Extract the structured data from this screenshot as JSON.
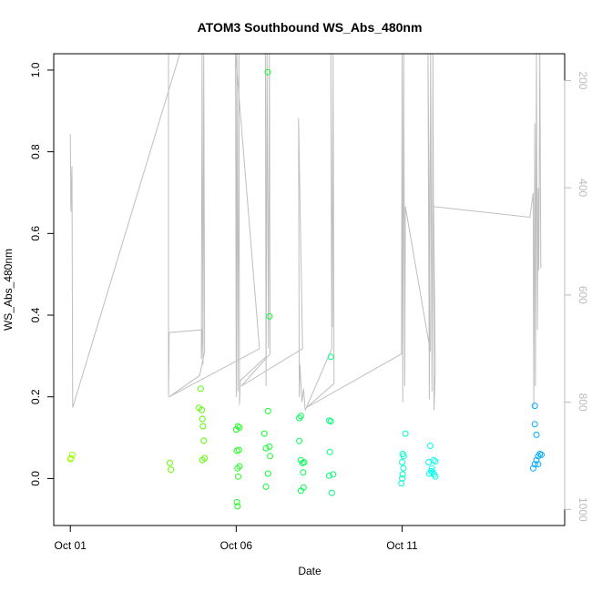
{
  "chart_data": {
    "type": "scatter",
    "title": "ATOM3 Southbound WS_Abs_480nm",
    "xlabel": "Date",
    "ylabel": "WS_Abs_480nm",
    "x_ticks": [
      {
        "day": 1,
        "label": "Oct 01"
      },
      {
        "day": 6,
        "label": "Oct 06"
      },
      {
        "day": 11,
        "label": "Oct 11"
      }
    ],
    "y_ticks": [
      "0.0",
      "0.2",
      "0.4",
      "0.6",
      "0.8",
      "1.0"
    ],
    "secondary_axis_ticks": [
      "200",
      "400",
      "600",
      "800",
      "1000"
    ],
    "xlim_days": [
      0.5,
      15.9
    ],
    "ylim": [
      -0.115,
      1.04
    ],
    "secondary_ylim": [
      1030,
      150
    ],
    "secondary_axis_color": "#bbbbbb",
    "line_color": "#bebebe",
    "grid": false,
    "legend": "none",
    "points": [
      {
        "day": 1.0,
        "y": 0.047,
        "color": "#99ff00"
      },
      {
        "day": 1.02,
        "y": 0.05,
        "color": "#99ff00"
      },
      {
        "day": 1.06,
        "y": 0.058,
        "color": "#99ff00"
      },
      {
        "day": 4.0,
        "y": 0.038,
        "color": "#66ff00"
      },
      {
        "day": 4.03,
        "y": 0.022,
        "color": "#66ff00"
      },
      {
        "day": 4.88,
        "y": 0.173,
        "color": "#55ff00"
      },
      {
        "day": 4.93,
        "y": 0.22,
        "color": "#55ff00"
      },
      {
        "day": 4.96,
        "y": 0.168,
        "color": "#55ff00"
      },
      {
        "day": 4.98,
        "y": 0.146,
        "color": "#55ff00"
      },
      {
        "day": 5.0,
        "y": 0.128,
        "color": "#55ff00"
      },
      {
        "day": 5.02,
        "y": 0.093,
        "color": "#55ff00"
      },
      {
        "day": 5.05,
        "y": 0.05,
        "color": "#55ff00"
      },
      {
        "day": 4.98,
        "y": 0.045,
        "color": "#55ff00"
      },
      {
        "day": 6.0,
        "y": 0.12,
        "color": "#22ff22"
      },
      {
        "day": 6.05,
        "y": 0.128,
        "color": "#22ff22"
      },
      {
        "day": 6.1,
        "y": 0.125,
        "color": "#22ff22"
      },
      {
        "day": 6.02,
        "y": 0.068,
        "color": "#22ff22"
      },
      {
        "day": 6.08,
        "y": 0.07,
        "color": "#22ff22"
      },
      {
        "day": 6.04,
        "y": 0.025,
        "color": "#22ff22"
      },
      {
        "day": 6.1,
        "y": 0.03,
        "color": "#22ff22"
      },
      {
        "day": 6.06,
        "y": 0.005,
        "color": "#22ff22"
      },
      {
        "day": 6.02,
        "y": -0.058,
        "color": "#22ff22"
      },
      {
        "day": 6.04,
        "y": -0.068,
        "color": "#22ff22"
      },
      {
        "day": 6.85,
        "y": 0.11,
        "color": "#11ff33"
      },
      {
        "day": 6.9,
        "y": 0.074,
        "color": "#11ff33"
      },
      {
        "day": 7.0,
        "y": 0.078,
        "color": "#11ff33"
      },
      {
        "day": 7.02,
        "y": 0.055,
        "color": "#11ff33"
      },
      {
        "day": 6.96,
        "y": 0.165,
        "color": "#11ff33"
      },
      {
        "day": 6.96,
        "y": 0.012,
        "color": "#11ff33"
      },
      {
        "day": 6.9,
        "y": -0.02,
        "color": "#11ff33"
      },
      {
        "day": 6.95,
        "y": 0.995,
        "color": "#11ff33"
      },
      {
        "day": 7.0,
        "y": 0.397,
        "color": "#11ff33"
      },
      {
        "day": 7.9,
        "y": 0.148,
        "color": "#00ff55"
      },
      {
        "day": 7.95,
        "y": 0.153,
        "color": "#00ff55"
      },
      {
        "day": 7.9,
        "y": 0.092,
        "color": "#00ff55"
      },
      {
        "day": 7.95,
        "y": 0.045,
        "color": "#00ff55"
      },
      {
        "day": 8.0,
        "y": 0.038,
        "color": "#00ff55"
      },
      {
        "day": 8.05,
        "y": 0.04,
        "color": "#00ff55"
      },
      {
        "day": 8.02,
        "y": 0.015,
        "color": "#00ff55"
      },
      {
        "day": 8.03,
        "y": -0.022,
        "color": "#00ff55"
      },
      {
        "day": 7.95,
        "y": -0.03,
        "color": "#00ff55"
      },
      {
        "day": 8.8,
        "y": 0.142,
        "color": "#00ff77"
      },
      {
        "day": 8.85,
        "y": 0.14,
        "color": "#00ff77"
      },
      {
        "day": 8.82,
        "y": 0.065,
        "color": "#00ff77"
      },
      {
        "day": 8.8,
        "y": 0.007,
        "color": "#00ff77"
      },
      {
        "day": 8.92,
        "y": 0.01,
        "color": "#00ff77"
      },
      {
        "day": 8.88,
        "y": -0.035,
        "color": "#00ff77"
      },
      {
        "day": 8.85,
        "y": 0.298,
        "color": "#00ff77"
      },
      {
        "day": 11.1,
        "y": 0.11,
        "color": "#00ffcc"
      },
      {
        "day": 11.02,
        "y": 0.06,
        "color": "#00ffcc"
      },
      {
        "day": 11.05,
        "y": 0.055,
        "color": "#00ffcc"
      },
      {
        "day": 11.0,
        "y": 0.04,
        "color": "#00ffcc"
      },
      {
        "day": 11.04,
        "y": 0.025,
        "color": "#00ffcc"
      },
      {
        "day": 11.02,
        "y": 0.01,
        "color": "#00ffcc"
      },
      {
        "day": 11.0,
        "y": 0.0,
        "color": "#00ffcc"
      },
      {
        "day": 10.98,
        "y": -0.012,
        "color": "#00ffcc"
      },
      {
        "day": 11.85,
        "y": 0.08,
        "color": "#00ffee"
      },
      {
        "day": 11.8,
        "y": 0.04,
        "color": "#00ffee"
      },
      {
        "day": 11.95,
        "y": 0.045,
        "color": "#00ffee"
      },
      {
        "day": 12.0,
        "y": 0.042,
        "color": "#00ffee"
      },
      {
        "day": 11.9,
        "y": 0.025,
        "color": "#00ffee"
      },
      {
        "day": 11.88,
        "y": 0.018,
        "color": "#00ffee"
      },
      {
        "day": 11.92,
        "y": 0.015,
        "color": "#00ffee"
      },
      {
        "day": 11.82,
        "y": 0.012,
        "color": "#00ffee"
      },
      {
        "day": 11.96,
        "y": 0.01,
        "color": "#00ffee"
      },
      {
        "day": 12.0,
        "y": 0.005,
        "color": "#00ffee"
      },
      {
        "day": 15.0,
        "y": 0.178,
        "color": "#00aaff"
      },
      {
        "day": 15.0,
        "y": 0.133,
        "color": "#00aaff"
      },
      {
        "day": 15.05,
        "y": 0.107,
        "color": "#00aaff"
      },
      {
        "day": 15.15,
        "y": 0.06,
        "color": "#00aaff"
      },
      {
        "day": 15.2,
        "y": 0.058,
        "color": "#00aaff"
      },
      {
        "day": 15.1,
        "y": 0.055,
        "color": "#00aaff"
      },
      {
        "day": 15.05,
        "y": 0.045,
        "color": "#00aaff"
      },
      {
        "day": 15.1,
        "y": 0.035,
        "color": "#00aaff"
      },
      {
        "day": 15.0,
        "y": 0.035,
        "color": "#00aaff"
      },
      {
        "day": 14.95,
        "y": 0.025,
        "color": "#00aaff"
      }
    ],
    "secondary_line": [
      {
        "day": 1.0,
        "v": 300
      },
      {
        "day": 1.02,
        "v": 445
      },
      {
        "day": 1.05,
        "v": 360
      },
      {
        "day": 1.07,
        "v": 810
      },
      {
        "day": 4.3,
        "v": 150
      },
      {
        "day": 4.3,
        "v": 150
      },
      {
        "day": 3.96,
        "v": 150
      },
      {
        "day": 3.96,
        "v": 790
      },
      {
        "day": 3.98,
        "v": 670
      },
      {
        "day": 4.98,
        "v": 665
      },
      {
        "day": 4.95,
        "v": 720
      },
      {
        "day": 4.97,
        "v": 150
      },
      {
        "day": 5.0,
        "v": 730
      },
      {
        "day": 5.02,
        "v": 150
      },
      {
        "day": 5.05,
        "v": 705
      },
      {
        "day": 4.9,
        "v": 750
      },
      {
        "day": 3.98,
        "v": 790
      },
      {
        "day": 6.7,
        "v": 700
      },
      {
        "day": 5.98,
        "v": 150
      },
      {
        "day": 6.0,
        "v": 790
      },
      {
        "day": 6.02,
        "v": 150
      },
      {
        "day": 6.05,
        "v": 780
      },
      {
        "day": 6.08,
        "v": 150
      },
      {
        "day": 6.1,
        "v": 805
      },
      {
        "day": 6.12,
        "v": 760
      },
      {
        "day": 6.9,
        "v": 715
      },
      {
        "day": 6.88,
        "v": 150
      },
      {
        "day": 6.9,
        "v": 770
      },
      {
        "day": 6.93,
        "v": 150
      },
      {
        "day": 6.97,
        "v": 700
      },
      {
        "day": 7.0,
        "v": 150
      },
      {
        "day": 7.02,
        "v": 710
      },
      {
        "day": 6.15,
        "v": 770
      },
      {
        "day": 8.0,
        "v": 700
      },
      {
        "day": 7.88,
        "v": 270
      },
      {
        "day": 7.9,
        "v": 790
      },
      {
        "day": 7.92,
        "v": 730
      },
      {
        "day": 7.98,
        "v": 800
      },
      {
        "day": 8.03,
        "v": 775
      },
      {
        "day": 8.08,
        "v": 815
      },
      {
        "day": 8.88,
        "v": 700
      },
      {
        "day": 8.85,
        "v": 150
      },
      {
        "day": 8.9,
        "v": 660
      },
      {
        "day": 8.92,
        "v": 150
      },
      {
        "day": 8.95,
        "v": 765
      },
      {
        "day": 8.12,
        "v": 810
      },
      {
        "day": 10.98,
        "v": 710
      },
      {
        "day": 11.0,
        "v": 150
      },
      {
        "day": 11.02,
        "v": 800
      },
      {
        "day": 11.05,
        "v": 150
      },
      {
        "day": 11.08,
        "v": 770
      },
      {
        "day": 11.1,
        "v": 435
      },
      {
        "day": 11.1,
        "v": 435
      },
      {
        "day": 11.85,
        "v": 705
      },
      {
        "day": 11.78,
        "v": 150
      },
      {
        "day": 11.82,
        "v": 795
      },
      {
        "day": 11.86,
        "v": 150
      },
      {
        "day": 11.9,
        "v": 780
      },
      {
        "day": 11.93,
        "v": 150
      },
      {
        "day": 11.96,
        "v": 815
      },
      {
        "day": 12.0,
        "v": 740
      },
      {
        "day": 11.95,
        "v": 435
      },
      {
        "day": 14.85,
        "v": 455
      },
      {
        "day": 14.95,
        "v": 410
      },
      {
        "day": 14.97,
        "v": 810
      },
      {
        "day": 15.0,
        "v": 280
      },
      {
        "day": 15.02,
        "v": 770
      },
      {
        "day": 15.05,
        "v": 150
      },
      {
        "day": 15.08,
        "v": 665
      },
      {
        "day": 15.1,
        "v": 400
      },
      {
        "day": 15.12,
        "v": 555
      },
      {
        "day": 15.15,
        "v": 150
      },
      {
        "day": 15.18,
        "v": 550
      }
    ]
  }
}
